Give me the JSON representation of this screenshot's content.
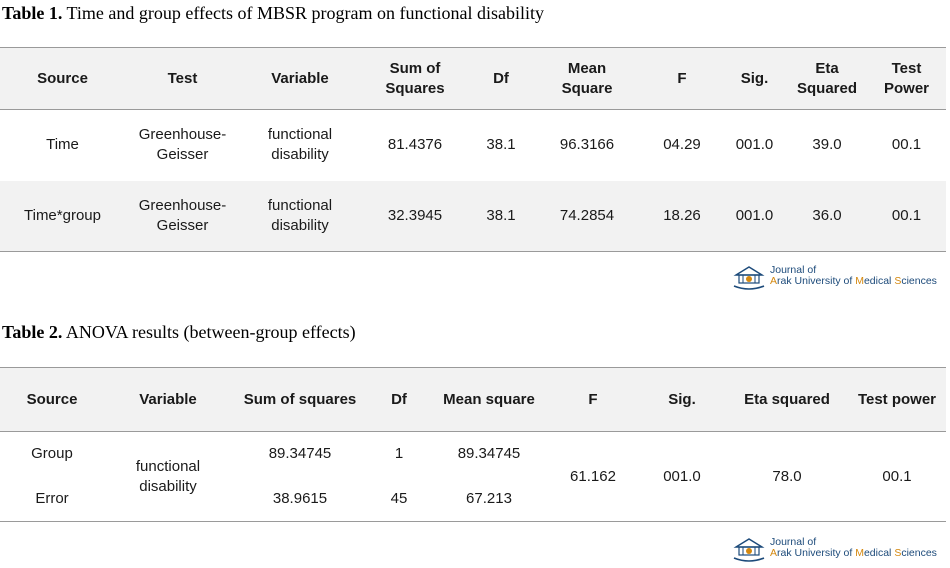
{
  "table1": {
    "caption_label": "Table 1.",
    "caption_text": " Time and group effects of MBSR program on functional disability",
    "headers": {
      "source": "Source",
      "test": "Test",
      "variable": "Variable",
      "sum_sq_1": "Sum of",
      "sum_sq_2": "Squares",
      "df": "Df",
      "mean_sq_1": "Mean",
      "mean_sq_2": "Square",
      "f": "F",
      "sig": "Sig.",
      "eta_1": "Eta",
      "eta_2": "Squared",
      "power_1": "Test",
      "power_2": "Power"
    },
    "rows": [
      {
        "source": "Time",
        "test_1": "Greenhouse-",
        "test_2": "Geisser",
        "variable_1": "functional",
        "variable_2": "disability",
        "sum_sq": "81.4376",
        "df": "38.1",
        "mean_sq": "96.3166",
        "f": "04.29",
        "sig": "001.0",
        "eta": "39.0",
        "power": "00.1"
      },
      {
        "source": "Time*group",
        "test_1": "Greenhouse-",
        "test_2": "Geisser",
        "variable_1": "functional",
        "variable_2": "disability",
        "sum_sq": "32.3945",
        "df": "38.1",
        "mean_sq": "74.2854",
        "f": "18.26",
        "sig": "001.0",
        "eta": "36.0",
        "power": "00.1"
      }
    ]
  },
  "table2": {
    "caption_label": "Table 2.",
    "caption_text": " ANOVA results (between-group effects)",
    "headers": {
      "source": "Source",
      "variable": "Variable",
      "sum_sq": "Sum of squares",
      "df": "Df",
      "mean_sq": "Mean square",
      "f": "F",
      "sig": "Sig.",
      "eta": "Eta squared",
      "power": "Test power"
    },
    "rows": [
      {
        "source": "Group",
        "sum_sq": "89.34745",
        "df": "1",
        "mean_sq": "89.34745"
      },
      {
        "source": "Error",
        "sum_sq": "38.9615",
        "df": "45",
        "mean_sq": "67.213"
      }
    ],
    "variable_1": "functional",
    "variable_2": "disability",
    "f": "61.162",
    "sig": "001.0",
    "eta": "78.0",
    "power": "00.1"
  },
  "logo": {
    "line1": "Journal of",
    "line2_a": "A",
    "line2_b": "rak University of ",
    "line2_c": "M",
    "line2_d": "edical ",
    "line2_e": "S",
    "line2_f": "ciences"
  },
  "colors": {
    "header_bg": "#f2f2f2",
    "rule": "#9a9a9a",
    "logo_blue": "#1c4a7a",
    "logo_orange": "#d4880f"
  }
}
